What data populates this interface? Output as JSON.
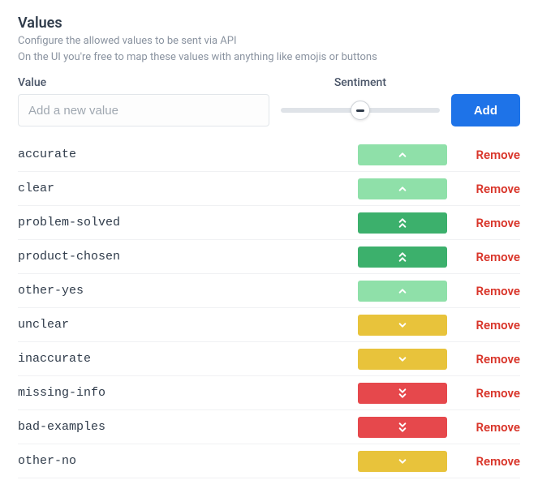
{
  "header": {
    "title": "Values",
    "subtitle_line1": "Configure the allowed values to be sent via API",
    "subtitle_line2": "On the UI you're free to map these values with anything like emojis or buttons"
  },
  "form": {
    "value_label": "Value",
    "value_placeholder": "Add a new value",
    "sentiment_label": "Sentiment",
    "add_label": "Add"
  },
  "sentiment_meta": {
    "colors": {
      "positive": {
        "bg": "#8fe0a9",
        "fg": "#ffffff"
      },
      "very_positive": {
        "bg": "#3cb06c",
        "fg": "#ffffff"
      },
      "negative": {
        "bg": "#e8c33b",
        "fg": "#ffffff"
      },
      "very_negative": {
        "bg": "#e6484c",
        "fg": "#ffffff"
      }
    }
  },
  "values": [
    {
      "name": "accurate",
      "sentiment": "positive"
    },
    {
      "name": "clear",
      "sentiment": "positive"
    },
    {
      "name": "problem-solved",
      "sentiment": "very_positive"
    },
    {
      "name": "product-chosen",
      "sentiment": "very_positive"
    },
    {
      "name": "other-yes",
      "sentiment": "positive"
    },
    {
      "name": "unclear",
      "sentiment": "negative"
    },
    {
      "name": "inaccurate",
      "sentiment": "negative"
    },
    {
      "name": "missing-info",
      "sentiment": "very_negative"
    },
    {
      "name": "bad-examples",
      "sentiment": "very_negative"
    },
    {
      "name": "other-no",
      "sentiment": "negative"
    }
  ],
  "labels": {
    "remove": "Remove"
  }
}
